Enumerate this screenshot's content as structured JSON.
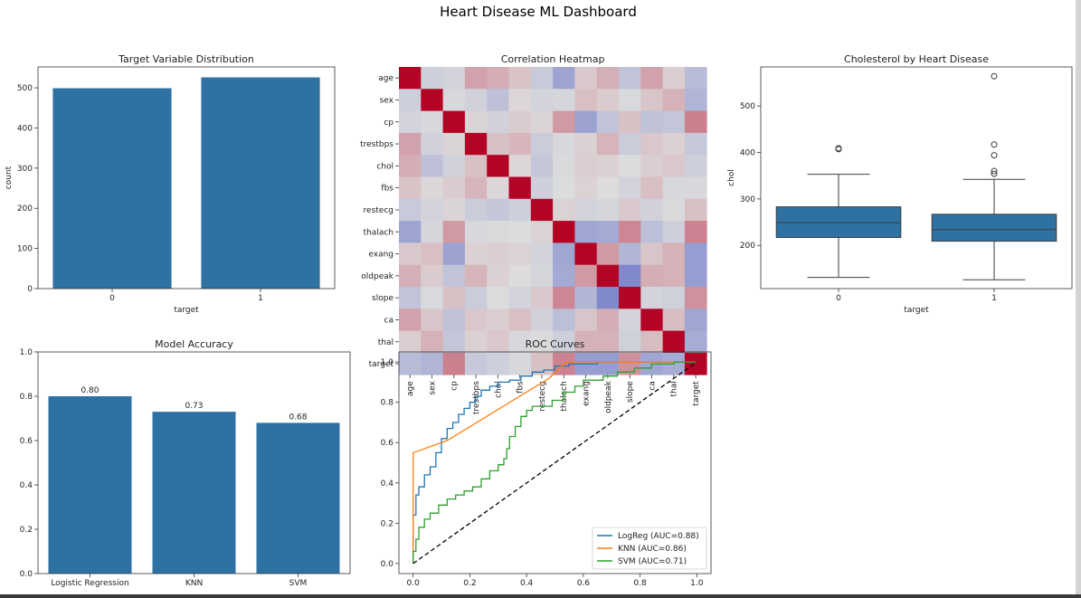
{
  "title": "Heart Disease ML Dashboard",
  "colors": {
    "bar": "#2e72a4",
    "logreg": "#1f77b4",
    "knn": "#ff7f0e",
    "svm": "#2ca02c",
    "diag": "#000000",
    "frame": "#333333"
  },
  "chart_data": [
    {
      "type": "bar",
      "title": "Target Variable Distribution",
      "xlabel": "target",
      "ylabel": "count",
      "categories": [
        "0",
        "1"
      ],
      "values": [
        499,
        526
      ],
      "ylim": [
        0,
        552
      ],
      "yticks": [
        0,
        100,
        200,
        300,
        400,
        500
      ],
      "grid": false
    },
    {
      "type": "heatmap",
      "title": "Correlation Heatmap",
      "labels": [
        "age",
        "sex",
        "cp",
        "trestbps",
        "chol",
        "fbs",
        "restecg",
        "thalach",
        "exang",
        "oldpeak",
        "slope",
        "ca",
        "thal",
        "target"
      ],
      "values": [
        [
          1.0,
          -0.1,
          -0.07,
          0.27,
          0.22,
          0.12,
          -0.13,
          -0.39,
          0.09,
          0.21,
          -0.17,
          0.27,
          0.07,
          -0.23
        ],
        [
          -0.1,
          1.0,
          -0.04,
          -0.08,
          -0.2,
          0.03,
          -0.06,
          -0.05,
          0.14,
          0.08,
          -0.03,
          0.11,
          0.2,
          -0.28
        ],
        [
          -0.07,
          -0.04,
          1.0,
          0.04,
          -0.08,
          0.08,
          0.04,
          0.31,
          -0.4,
          -0.17,
          0.13,
          -0.18,
          -0.16,
          0.43
        ],
        [
          0.27,
          -0.08,
          0.04,
          1.0,
          0.13,
          0.18,
          -0.12,
          -0.04,
          0.06,
          0.19,
          -0.12,
          0.1,
          0.06,
          -0.14
        ],
        [
          0.22,
          -0.2,
          -0.08,
          0.13,
          1.0,
          0.03,
          -0.15,
          -0.02,
          0.07,
          0.06,
          -0.01,
          0.07,
          0.1,
          -0.1
        ],
        [
          0.12,
          0.03,
          0.08,
          0.18,
          0.03,
          1.0,
          -0.1,
          -0.01,
          0.05,
          0.01,
          -0.06,
          0.14,
          -0.04,
          -0.04
        ],
        [
          -0.13,
          -0.06,
          0.04,
          -0.12,
          -0.15,
          -0.1,
          1.0,
          0.05,
          -0.07,
          -0.05,
          0.09,
          -0.08,
          -0.02,
          0.13
        ],
        [
          -0.39,
          -0.05,
          0.31,
          -0.04,
          -0.02,
          -0.01,
          0.05,
          1.0,
          -0.38,
          -0.35,
          0.4,
          -0.21,
          -0.1,
          0.42
        ],
        [
          0.09,
          0.14,
          -0.4,
          0.06,
          0.07,
          0.05,
          -0.07,
          -0.38,
          1.0,
          0.31,
          -0.27,
          0.11,
          0.2,
          -0.44
        ],
        [
          0.21,
          0.08,
          -0.17,
          0.19,
          0.06,
          0.01,
          -0.05,
          -0.35,
          0.31,
          1.0,
          -0.58,
          0.22,
          0.2,
          -0.44
        ],
        [
          -0.17,
          -0.03,
          0.13,
          -0.12,
          -0.01,
          -0.06,
          0.09,
          0.4,
          -0.27,
          -0.58,
          1.0,
          -0.07,
          -0.09,
          0.35
        ],
        [
          0.27,
          0.11,
          -0.18,
          0.1,
          0.07,
          0.14,
          -0.08,
          -0.21,
          0.11,
          0.22,
          -0.07,
          1.0,
          0.15,
          -0.38
        ],
        [
          0.07,
          0.2,
          -0.16,
          0.06,
          0.1,
          -0.04,
          -0.02,
          -0.1,
          0.2,
          0.2,
          -0.09,
          0.15,
          1.0,
          -0.34
        ],
        [
          -0.23,
          -0.28,
          0.43,
          -0.14,
          -0.1,
          -0.04,
          0.13,
          0.42,
          -0.44,
          -0.44,
          0.35,
          -0.38,
          -0.34,
          1.0
        ]
      ],
      "colormap": "coolwarm"
    },
    {
      "type": "box",
      "title": "Cholesterol by Heart Disease",
      "xlabel": "target",
      "ylabel": "chol",
      "categories": [
        "0",
        "1"
      ],
      "boxes": [
        {
          "whislo": 131,
          "q1": 217,
          "median": 249,
          "q3": 283,
          "whishi": 353,
          "fliers": [
            407,
            409
          ]
        },
        {
          "whislo": 126,
          "q1": 209,
          "median": 234,
          "q3": 267,
          "whishi": 342,
          "fliers": [
            354,
            360,
            394,
            417,
            564
          ]
        }
      ],
      "ylim": [
        107,
        584
      ],
      "yticks": [
        200,
        300,
        400,
        500
      ]
    },
    {
      "type": "bar",
      "title": "Model Accuracy",
      "categories": [
        "Logistic Regression",
        "KNN",
        "SVM"
      ],
      "values": [
        0.8,
        0.73,
        0.68
      ],
      "value_labels": [
        "0.80",
        "0.73",
        "0.68"
      ],
      "ylim": [
        0,
        1.0
      ],
      "yticks": [
        "0.0",
        "0.2",
        "0.4",
        "0.6",
        "0.8",
        "1.0"
      ]
    },
    {
      "type": "line",
      "title": "ROC Curves",
      "xlim": [
        -0.05,
        1.05
      ],
      "ylim": [
        -0.05,
        1.05
      ],
      "xticks": [
        "0.0",
        "0.2",
        "0.4",
        "0.6",
        "0.8",
        "1.0"
      ],
      "yticks": [
        "0.0",
        "0.2",
        "0.4",
        "0.6",
        "0.8",
        "1.0"
      ],
      "legend_position": "bottom-right",
      "series": [
        {
          "name": "LogReg (AUC=0.88)",
          "step": true,
          "points": [
            [
              0,
              0
            ],
            [
              0,
              0.24
            ],
            [
              0.01,
              0.24
            ],
            [
              0.01,
              0.34
            ],
            [
              0.02,
              0.34
            ],
            [
              0.02,
              0.38
            ],
            [
              0.04,
              0.38
            ],
            [
              0.04,
              0.44
            ],
            [
              0.06,
              0.44
            ],
            [
              0.06,
              0.48
            ],
            [
              0.08,
              0.48
            ],
            [
              0.08,
              0.55
            ],
            [
              0.1,
              0.55
            ],
            [
              0.1,
              0.62
            ],
            [
              0.12,
              0.62
            ],
            [
              0.12,
              0.67
            ],
            [
              0.14,
              0.67
            ],
            [
              0.14,
              0.7
            ],
            [
              0.16,
              0.7
            ],
            [
              0.16,
              0.74
            ],
            [
              0.18,
              0.74
            ],
            [
              0.18,
              0.77
            ],
            [
              0.2,
              0.77
            ],
            [
              0.2,
              0.8
            ],
            [
              0.22,
              0.8
            ],
            [
              0.22,
              0.83
            ],
            [
              0.24,
              0.83
            ],
            [
              0.24,
              0.86
            ],
            [
              0.27,
              0.86
            ],
            [
              0.27,
              0.88
            ],
            [
              0.3,
              0.88
            ],
            [
              0.3,
              0.9
            ],
            [
              0.34,
              0.9
            ],
            [
              0.34,
              0.91
            ],
            [
              0.38,
              0.91
            ],
            [
              0.38,
              0.93
            ],
            [
              0.42,
              0.93
            ],
            [
              0.42,
              0.95
            ],
            [
              0.46,
              0.95
            ],
            [
              0.46,
              0.96
            ],
            [
              0.5,
              0.96
            ],
            [
              0.5,
              0.98
            ],
            [
              0.55,
              0.98
            ],
            [
              0.55,
              0.99
            ],
            [
              0.65,
              0.99
            ],
            [
              0.65,
              1.0
            ],
            [
              1.0,
              1.0
            ]
          ]
        },
        {
          "name": "KNN (AUC=0.86)",
          "step": false,
          "points": [
            [
              0,
              0
            ],
            [
              0,
              0.55
            ],
            [
              0.12,
              0.61
            ],
            [
              0.48,
              0.92
            ],
            [
              0.54,
              1.0
            ],
            [
              1.0,
              1.0
            ]
          ]
        },
        {
          "name": "SVM (AUC=0.71)",
          "step": true,
          "points": [
            [
              0,
              0
            ],
            [
              0,
              0.06
            ],
            [
              0.01,
              0.06
            ],
            [
              0.01,
              0.12
            ],
            [
              0.02,
              0.12
            ],
            [
              0.02,
              0.18
            ],
            [
              0.04,
              0.18
            ],
            [
              0.04,
              0.22
            ],
            [
              0.06,
              0.22
            ],
            [
              0.06,
              0.25
            ],
            [
              0.09,
              0.25
            ],
            [
              0.09,
              0.29
            ],
            [
              0.12,
              0.29
            ],
            [
              0.12,
              0.32
            ],
            [
              0.15,
              0.32
            ],
            [
              0.15,
              0.34
            ],
            [
              0.18,
              0.34
            ],
            [
              0.18,
              0.36
            ],
            [
              0.21,
              0.36
            ],
            [
              0.21,
              0.38
            ],
            [
              0.24,
              0.38
            ],
            [
              0.24,
              0.42
            ],
            [
              0.27,
              0.42
            ],
            [
              0.27,
              0.46
            ],
            [
              0.3,
              0.46
            ],
            [
              0.3,
              0.49
            ],
            [
              0.32,
              0.49
            ],
            [
              0.32,
              0.52
            ],
            [
              0.33,
              0.52
            ],
            [
              0.33,
              0.57
            ],
            [
              0.34,
              0.57
            ],
            [
              0.34,
              0.63
            ],
            [
              0.36,
              0.63
            ],
            [
              0.36,
              0.68
            ],
            [
              0.38,
              0.68
            ],
            [
              0.38,
              0.73
            ],
            [
              0.4,
              0.73
            ],
            [
              0.4,
              0.76
            ],
            [
              0.42,
              0.76
            ],
            [
              0.42,
              0.78
            ],
            [
              0.49,
              0.78
            ],
            [
              0.49,
              0.81
            ],
            [
              0.53,
              0.81
            ],
            [
              0.53,
              0.85
            ],
            [
              0.57,
              0.85
            ],
            [
              0.57,
              0.88
            ],
            [
              0.6,
              0.88
            ],
            [
              0.6,
              0.91
            ],
            [
              0.67,
              0.91
            ],
            [
              0.67,
              0.93
            ],
            [
              0.72,
              0.93
            ],
            [
              0.72,
              0.95
            ],
            [
              0.78,
              0.95
            ],
            [
              0.78,
              0.97
            ],
            [
              0.84,
              0.97
            ],
            [
              0.84,
              0.99
            ],
            [
              0.92,
              0.99
            ],
            [
              0.92,
              1.0
            ],
            [
              1.0,
              1.0
            ]
          ]
        },
        {
          "name": "",
          "dashed": true,
          "points": [
            [
              0,
              0
            ],
            [
              1,
              1
            ]
          ]
        }
      ]
    }
  ]
}
